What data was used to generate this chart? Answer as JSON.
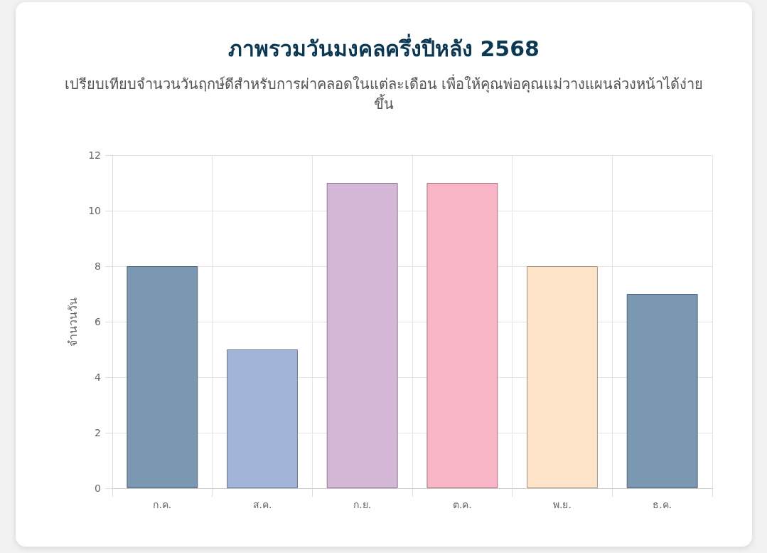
{
  "chart_data": {
    "type": "bar",
    "title": "ภาพรวมวันมงคลครึ่งปีหลัง 2568",
    "subtitle": "เปรียบเทียบจำนวนวันฤกษ์ดีสำหรับการผ่าคลอดในแต่ละเดือน เพื่อให้คุณพ่อคุณแม่วางแผนล่วงหน้าได้ง่ายขึ้น",
    "ylabel": "จำนวนวัน",
    "categories": [
      "ก.ค.",
      "ส.ค.",
      "ก.ย.",
      "ต.ค.",
      "พ.ย.",
      "ธ.ค."
    ],
    "values": [
      8,
      5,
      11,
      11,
      8,
      7
    ],
    "colors": [
      "#7b98b2",
      "#a2b5d8",
      "#d5b8d8",
      "#f7b5c6",
      "#fde3c8",
      "#7b98b2"
    ],
    "ylim": [
      0,
      12
    ],
    "yticks": [
      0,
      2,
      4,
      6,
      8,
      10,
      12
    ],
    "grid": true
  }
}
